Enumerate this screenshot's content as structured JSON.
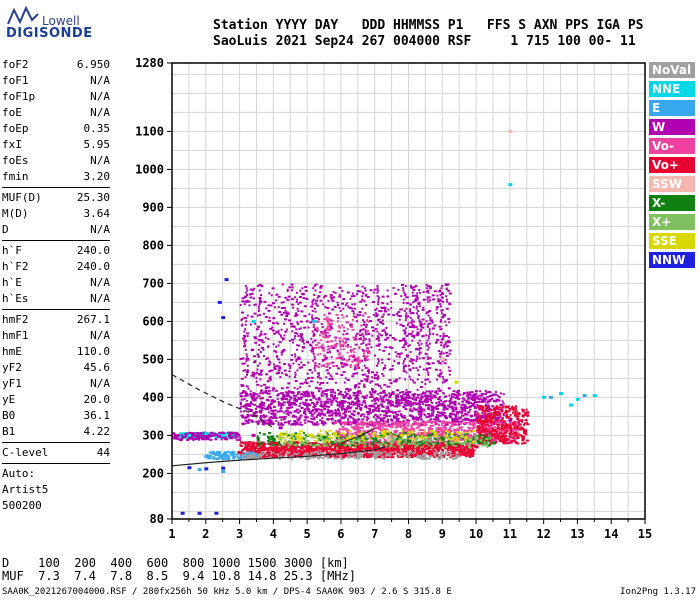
{
  "logo": {
    "line1": "Lowell",
    "line2": "DIGISONDE"
  },
  "header": {
    "line1": "Station YYYY DAY   DDD HHMMSS P1   FFS S AXN PPS IGA PS",
    "line2": "SaoLuis 2021 Sep24 267 004000 RSF     1 715 100 00- 11"
  },
  "params": [
    {
      "k": "foF2",
      "v": "6.950"
    },
    {
      "k": "foF1",
      "v": "N/A"
    },
    {
      "k": "foF1p",
      "v": "N/A"
    },
    {
      "k": "foE",
      "v": "N/A"
    },
    {
      "k": "foEp",
      "v": "0.35"
    },
    {
      "k": "fxI",
      "v": "5.95"
    },
    {
      "k": "foEs",
      "v": "N/A"
    },
    {
      "k": "fmin",
      "v": "3.20"
    }
  ],
  "params2": [
    {
      "k": "MUF(D)",
      "v": "25.30"
    },
    {
      "k": "M(D)",
      "v": "3.64"
    },
    {
      "k": "D",
      "v": "N/A"
    }
  ],
  "params3": [
    {
      "k": "h`F",
      "v": "240.0"
    },
    {
      "k": "h`F2",
      "v": "240.0"
    },
    {
      "k": "h`E",
      "v": "N/A"
    },
    {
      "k": "h`Es",
      "v": "N/A"
    }
  ],
  "params4": [
    {
      "k": "hmF2",
      "v": "267.1"
    },
    {
      "k": "hmF1",
      "v": "N/A"
    },
    {
      "k": "hmE",
      "v": "110.0"
    },
    {
      "k": "yF2",
      "v": "45.6"
    },
    {
      "k": "yF1",
      "v": "N/A"
    },
    {
      "k": "yE",
      "v": "20.0"
    },
    {
      "k": "B0",
      "v": "36.1"
    },
    {
      "k": "B1",
      "v": "4.22"
    }
  ],
  "clevel": {
    "k": "C-level",
    "v": "44"
  },
  "auto": [
    "Auto:",
    "Artist5",
    "500200"
  ],
  "legend": [
    {
      "label": "NoVal",
      "color": "#a0a0a0"
    },
    {
      "label": "NNE",
      "color": "#00d8e8"
    },
    {
      "label": "E",
      "color": "#38a8f0"
    },
    {
      "label": "W",
      "color": "#b000b0"
    },
    {
      "label": "Vo-",
      "color": "#f040a0"
    },
    {
      "label": "Vo+",
      "color": "#e80030"
    },
    {
      "label": "SSW",
      "color": "#f4b8b0"
    },
    {
      "label": "X-",
      "color": "#108010"
    },
    {
      "label": "X+",
      "color": "#80c060"
    },
    {
      "label": "SSE",
      "color": "#d8d800"
    },
    {
      "label": "NNW",
      "color": "#2020e0"
    }
  ],
  "muf_table": {
    "line1": "D    100  200  400  600  800 1000 1500 3000 [km]",
    "line2": "MUF  7.3  7.4  7.8  8.5  9.4 10.8 14.8 25.3 [MHz]"
  },
  "footer": {
    "left": "SAA0K_2021267004000.RSF / 280fx256h 50 kHz 5.0 km / DPS-4 SAA0K 903 / 2.6 S 315.8 E",
    "right": "Ion2Png 1.3.17"
  },
  "chart_data": {
    "type": "scatter",
    "title": "",
    "xlabel": "",
    "ylabel": "",
    "xlim": [
      1,
      15
    ],
    "ylim": [
      80,
      1280
    ],
    "x_ticks": [
      1,
      2,
      3,
      4,
      5,
      6,
      7,
      8,
      9,
      10,
      11,
      12,
      13,
      14,
      15
    ],
    "y_ticks": [
      80,
      200,
      300,
      400,
      500,
      600,
      700,
      800,
      900,
      1000,
      1100,
      1280
    ],
    "series": [
      {
        "name": "W",
        "color": "#b000b0",
        "points": [
          [
            3.2,
            380
          ],
          [
            3.6,
            375
          ],
          [
            4.0,
            390
          ],
          [
            4.5,
            385
          ],
          [
            5.0,
            380
          ],
          [
            5.5,
            378
          ],
          [
            6.0,
            382
          ],
          [
            6.5,
            390
          ],
          [
            7.0,
            395
          ],
          [
            7.5,
            380
          ],
          [
            8.0,
            385
          ],
          [
            8.5,
            390
          ],
          [
            9.0,
            380
          ],
          [
            10.2,
            350
          ],
          [
            10.6,
            345
          ],
          [
            11.0,
            340
          ],
          [
            3.4,
            300
          ],
          [
            4.2,
            320
          ],
          [
            5.2,
            330
          ],
          [
            6.4,
            335
          ],
          [
            7.2,
            340
          ],
          [
            8.2,
            345
          ]
        ]
      },
      {
        "name": "Vo+",
        "color": "#e80030",
        "points": [
          [
            3.0,
            255
          ],
          [
            3.5,
            258
          ],
          [
            4.0,
            260
          ],
          [
            4.5,
            262
          ],
          [
            5.0,
            262
          ],
          [
            5.5,
            265
          ],
          [
            6.0,
            268
          ],
          [
            6.5,
            270
          ],
          [
            7.0,
            272
          ],
          [
            7.5,
            265
          ],
          [
            8.0,
            270
          ],
          [
            8.5,
            272
          ],
          [
            9.0,
            275
          ],
          [
            9.5,
            262
          ],
          [
            10.0,
            270
          ],
          [
            10.5,
            300
          ],
          [
            11.0,
            320
          ]
        ]
      },
      {
        "name": "Vo-",
        "color": "#f040a0",
        "points": [
          [
            6.0,
            300
          ],
          [
            6.5,
            310
          ],
          [
            7.0,
            320
          ],
          [
            7.6,
            310
          ],
          [
            8.4,
            305
          ],
          [
            9.0,
            310
          ],
          [
            9.8,
            300
          ],
          [
            10.4,
            320
          ],
          [
            11.2,
            330
          ]
        ]
      },
      {
        "name": "NNE",
        "color": "#00d8e8",
        "points": [
          [
            1.5,
            300
          ],
          [
            2.0,
            305
          ],
          [
            2.5,
            300
          ],
          [
            12.0,
            400
          ],
          [
            12.5,
            410
          ],
          [
            13.0,
            395
          ],
          [
            13.5,
            405
          ],
          [
            12.8,
            380
          ],
          [
            3.4,
            600
          ],
          [
            5.2,
            600
          ],
          [
            11.0,
            960
          ]
        ]
      },
      {
        "name": "E",
        "color": "#38a8f0",
        "points": [
          [
            2.0,
            245
          ],
          [
            2.5,
            248
          ],
          [
            3.0,
            240
          ],
          [
            1.8,
            210
          ],
          [
            2.5,
            205
          ],
          [
            12.2,
            400
          ],
          [
            13.2,
            405
          ]
        ]
      },
      {
        "name": "NNW",
        "color": "#2020e0",
        "points": [
          [
            1.3,
            95
          ],
          [
            1.8,
            95
          ],
          [
            2.3,
            95
          ],
          [
            1.5,
            215
          ],
          [
            2.0,
            212
          ],
          [
            2.5,
            214
          ],
          [
            2.4,
            650
          ],
          [
            2.6,
            710
          ],
          [
            2.5,
            610
          ]
        ]
      },
      {
        "name": "X-",
        "color": "#108010",
        "points": [
          [
            4.0,
            290
          ],
          [
            5.5,
            295
          ],
          [
            7.0,
            290
          ],
          [
            8.0,
            285
          ],
          [
            9.0,
            290
          ],
          [
            10.5,
            280
          ]
        ]
      },
      {
        "name": "X+",
        "color": "#80c060",
        "points": [
          [
            4.5,
            280
          ],
          [
            6.0,
            285
          ],
          [
            7.5,
            282
          ],
          [
            8.5,
            288
          ],
          [
            10.0,
            295
          ]
        ]
      },
      {
        "name": "SSE",
        "color": "#d8d800",
        "points": [
          [
            4.2,
            300
          ],
          [
            5.8,
            305
          ],
          [
            7.8,
            300
          ],
          [
            9.4,
            440
          ],
          [
            8.8,
            300
          ]
        ]
      },
      {
        "name": "SSW",
        "color": "#f4b8b0",
        "points": [
          [
            6.2,
            280
          ],
          [
            7.4,
            290
          ],
          [
            9.0,
            500
          ],
          [
            11.0,
            1100
          ]
        ]
      },
      {
        "name": "NoVal",
        "color": "#a0a0a0",
        "points": [
          [
            3.5,
            240
          ],
          [
            5.0,
            245
          ],
          [
            6.5,
            250
          ],
          [
            8.0,
            255
          ]
        ]
      }
    ],
    "trace_lines": [
      {
        "kind": "solid",
        "points": [
          [
            1,
            220
          ],
          [
            2,
            228
          ],
          [
            3,
            235
          ],
          [
            4,
            240
          ],
          [
            5,
            245
          ],
          [
            6,
            252
          ],
          [
            7,
            262
          ],
          [
            7.3,
            270
          ]
        ]
      },
      {
        "kind": "dashed",
        "points": [
          [
            1,
            460
          ],
          [
            1.8,
            420
          ],
          [
            2.6,
            385
          ],
          [
            3.3,
            360
          ],
          [
            4,
            320
          ]
        ]
      },
      {
        "kind": "solid",
        "points": [
          [
            6,
            280
          ],
          [
            6.6,
            300
          ],
          [
            7.0,
            318
          ]
        ]
      }
    ]
  }
}
